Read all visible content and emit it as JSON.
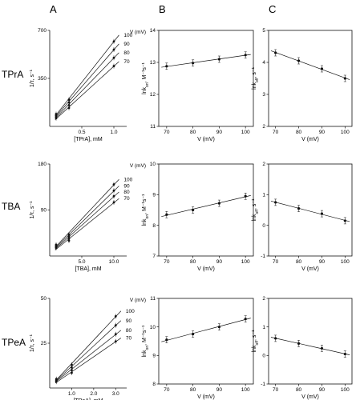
{
  "figure": {
    "panel_labels": [
      "A",
      "B",
      "C"
    ],
    "row_labels": [
      "TPrA",
      "TBA",
      "TPeA"
    ]
  },
  "chart_data": [
    {
      "id": "A-TPrA",
      "type": "line",
      "xlabel": "[TPrA], mM",
      "ylabel": "1/τ, s⁻¹",
      "xlim": [
        0,
        1.2
      ],
      "ylim": [
        0,
        700
      ],
      "xticks": [
        0.5,
        1.0
      ],
      "xtick_labels": [
        "0.5",
        "1.0"
      ],
      "yticks": [
        350,
        700
      ],
      "ytick_labels": [
        "350",
        "700"
      ],
      "legend_title": "V (mV)",
      "x": [
        0.1,
        0.3,
        1.0
      ],
      "series": [
        {
          "name": "100",
          "values": [
            90,
            195,
            620
          ]
        },
        {
          "name": "90",
          "values": [
            80,
            175,
            560
          ]
        },
        {
          "name": "80",
          "values": [
            70,
            155,
            500
          ]
        },
        {
          "name": "70",
          "values": [
            60,
            135,
            440
          ]
        }
      ]
    },
    {
      "id": "B-TPrA",
      "type": "line",
      "xlabel": "V (mV)",
      "ylabel": "lnk_on, M⁻¹s⁻¹",
      "xlim": [
        67,
        103
      ],
      "ylim": [
        11,
        14
      ],
      "xticks": [
        70,
        80,
        90,
        100
      ],
      "xtick_labels": [
        "70",
        "80",
        "90",
        "100"
      ],
      "yticks": [
        11,
        12,
        13,
        14
      ],
      "ytick_labels": [
        "11",
        "12",
        "13",
        "14"
      ],
      "x": [
        70,
        80,
        90,
        100
      ],
      "values": [
        12.88,
        12.98,
        13.1,
        13.23
      ]
    },
    {
      "id": "C-TPrA",
      "type": "line",
      "xlabel": "V (mV)",
      "ylabel": "lnk_off, s⁻¹",
      "xlim": [
        67,
        103
      ],
      "ylim": [
        2,
        5
      ],
      "xticks": [
        70,
        80,
        90,
        100
      ],
      "xtick_labels": [
        "70",
        "80",
        "90",
        "100"
      ],
      "yticks": [
        2,
        3,
        4,
        5
      ],
      "ytick_labels": [
        "2",
        "3",
        "4",
        "5"
      ],
      "x": [
        70,
        80,
        90,
        100
      ],
      "values": [
        4.3,
        4.05,
        3.8,
        3.5
      ]
    },
    {
      "id": "A-TBA",
      "type": "line",
      "xlabel": "[TBA], mM",
      "ylabel": "1/τ, s⁻¹",
      "xlim": [
        0,
        12
      ],
      "ylim": [
        0,
        180
      ],
      "xticks": [
        5.0,
        10.0
      ],
      "xtick_labels": [
        "5.0",
        "10.0"
      ],
      "yticks": [
        90,
        180
      ],
      "ytick_labels": [
        "90",
        "180"
      ],
      "legend_title": "V (mV)",
      "x": [
        1.0,
        3.0,
        10.0
      ],
      "series": [
        {
          "name": "100",
          "values": [
            22,
            42,
            140
          ]
        },
        {
          "name": "90",
          "values": [
            20,
            38,
            128
          ]
        },
        {
          "name": "80",
          "values": [
            18,
            34,
            117
          ]
        },
        {
          "name": "70",
          "values": [
            16,
            30,
            105
          ]
        }
      ]
    },
    {
      "id": "B-TBA",
      "type": "line",
      "xlabel": "V (mV)",
      "ylabel": "lnk_on, M⁻¹s⁻¹",
      "xlim": [
        67,
        103
      ],
      "ylim": [
        7,
        10
      ],
      "xticks": [
        70,
        80,
        90,
        100
      ],
      "xtick_labels": [
        "70",
        "80",
        "90",
        "100"
      ],
      "yticks": [
        7,
        8,
        9,
        10
      ],
      "ytick_labels": [
        "7",
        "8",
        "9",
        "10"
      ],
      "x": [
        70,
        80,
        90,
        100
      ],
      "values": [
        8.35,
        8.5,
        8.72,
        8.95
      ]
    },
    {
      "id": "C-TBA",
      "type": "line",
      "xlabel": "V (mV)",
      "ylabel": "lnk_off, s⁻¹",
      "xlim": [
        67,
        103
      ],
      "ylim": [
        -1,
        2
      ],
      "xticks": [
        70,
        80,
        90,
        100
      ],
      "xtick_labels": [
        "70",
        "80",
        "90",
        "100"
      ],
      "yticks": [
        -1,
        0,
        1,
        2
      ],
      "ytick_labels": [
        "-1",
        "0",
        "1",
        "2"
      ],
      "x": [
        70,
        80,
        90,
        100
      ],
      "values": [
        0.75,
        0.55,
        0.38,
        0.15
      ]
    },
    {
      "id": "A-TPeA",
      "type": "line",
      "xlabel": "[TPeA], mM",
      "ylabel": "1/τ, s⁻¹",
      "xlim": [
        0,
        3.5
      ],
      "ylim": [
        0,
        50
      ],
      "xticks": [
        1.0,
        2.0,
        3.0
      ],
      "xtick_labels": [
        "1.0",
        "2.0",
        "3.0"
      ],
      "yticks": [
        25,
        50
      ],
      "ytick_labels": [
        "25",
        "50"
      ],
      "legend_title": "V (mV)",
      "x": [
        0.3,
        1.0,
        3.0
      ],
      "series": [
        {
          "name": "100",
          "values": [
            5,
            13,
            40
          ]
        },
        {
          "name": "90",
          "values": [
            4.5,
            11.5,
            35
          ]
        },
        {
          "name": "80",
          "values": [
            4,
            10,
            30
          ]
        },
        {
          "name": "70",
          "values": [
            3.5,
            8.5,
            26
          ]
        }
      ]
    },
    {
      "id": "B-TPeA",
      "type": "line",
      "xlabel": "V (mV)",
      "ylabel": "lnk_on, M⁻¹s⁻¹",
      "xlim": [
        67,
        103
      ],
      "ylim": [
        8,
        11
      ],
      "xticks": [
        70,
        80,
        90,
        100
      ],
      "xtick_labels": [
        "70",
        "80",
        "90",
        "100"
      ],
      "yticks": [
        8,
        9,
        10,
        11
      ],
      "ytick_labels": [
        "8",
        "9",
        "10",
        "11"
      ],
      "x": [
        70,
        80,
        90,
        100
      ],
      "values": [
        9.55,
        9.75,
        10.0,
        10.28
      ]
    },
    {
      "id": "C-TPeA",
      "type": "line",
      "xlabel": "V (mV)",
      "ylabel": "lnk_off, s⁻¹",
      "xlim": [
        67,
        103
      ],
      "ylim": [
        -1,
        2
      ],
      "xticks": [
        70,
        80,
        90,
        100
      ],
      "xtick_labels": [
        "70",
        "80",
        "90",
        "100"
      ],
      "yticks": [
        -1,
        0,
        1,
        2
      ],
      "ytick_labels": [
        "-1",
        "0",
        "1",
        "2"
      ],
      "x": [
        70,
        80,
        90,
        100
      ],
      "values": [
        0.6,
        0.42,
        0.25,
        0.05
      ]
    }
  ]
}
